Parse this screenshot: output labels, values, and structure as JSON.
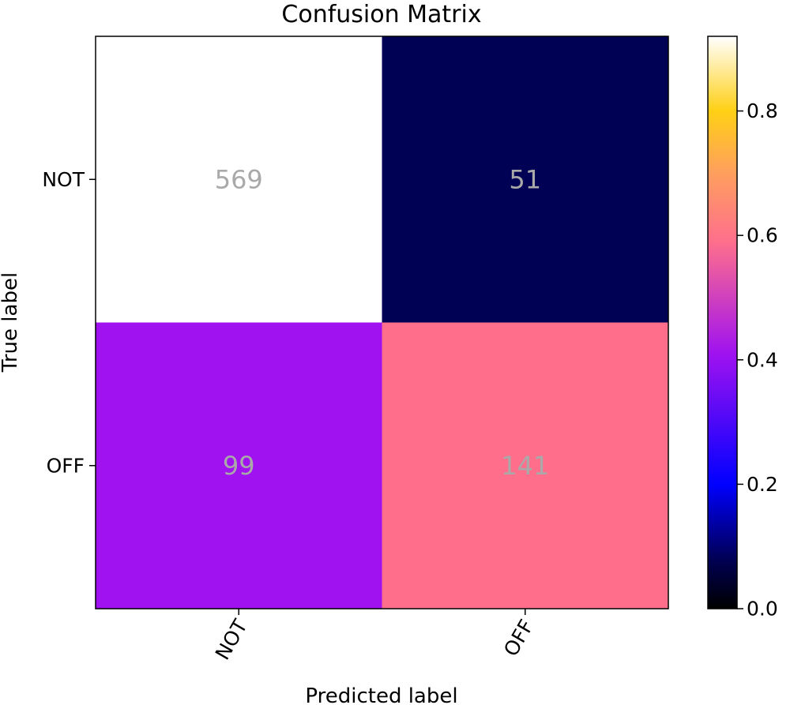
{
  "chart_data": {
    "type": "heatmap",
    "title": "Confusion Matrix",
    "xlabel": "Predicted label",
    "ylabel": "True label",
    "x_categories": [
      "NOT",
      "OFF"
    ],
    "y_categories": [
      "NOT",
      "OFF"
    ],
    "counts": [
      [
        569,
        51
      ],
      [
        99,
        141
      ]
    ],
    "normalized_values": [
      [
        0.92,
        0.08
      ],
      [
        0.41,
        0.59
      ]
    ],
    "cell_labels": [
      [
        "569",
        "51"
      ],
      [
        "99",
        "141"
      ]
    ],
    "colorbar": {
      "colormap": "gnuplot2",
      "range": [
        0.0,
        0.92
      ],
      "ticks": [
        0.0,
        0.2,
        0.4,
        0.6,
        0.8
      ],
      "tick_labels": [
        "0.0",
        "0.2",
        "0.4",
        "0.6",
        "0.8"
      ],
      "colors": {
        "0.0": "#000000",
        "0.08": "#000055",
        "0.2": "#0000ff",
        "0.41": "#a012f0",
        "0.59": "#ff6f8c",
        "0.7": "#ff9f5e",
        "0.8": "#ffd015",
        "0.92": "#ffffff"
      }
    },
    "cell_text_color": "#a9a9a9",
    "cell_colors": [
      [
        "#ffffff",
        "#000055"
      ],
      [
        "#a012f0",
        "#ff6f8c"
      ]
    ],
    "grid": false
  }
}
